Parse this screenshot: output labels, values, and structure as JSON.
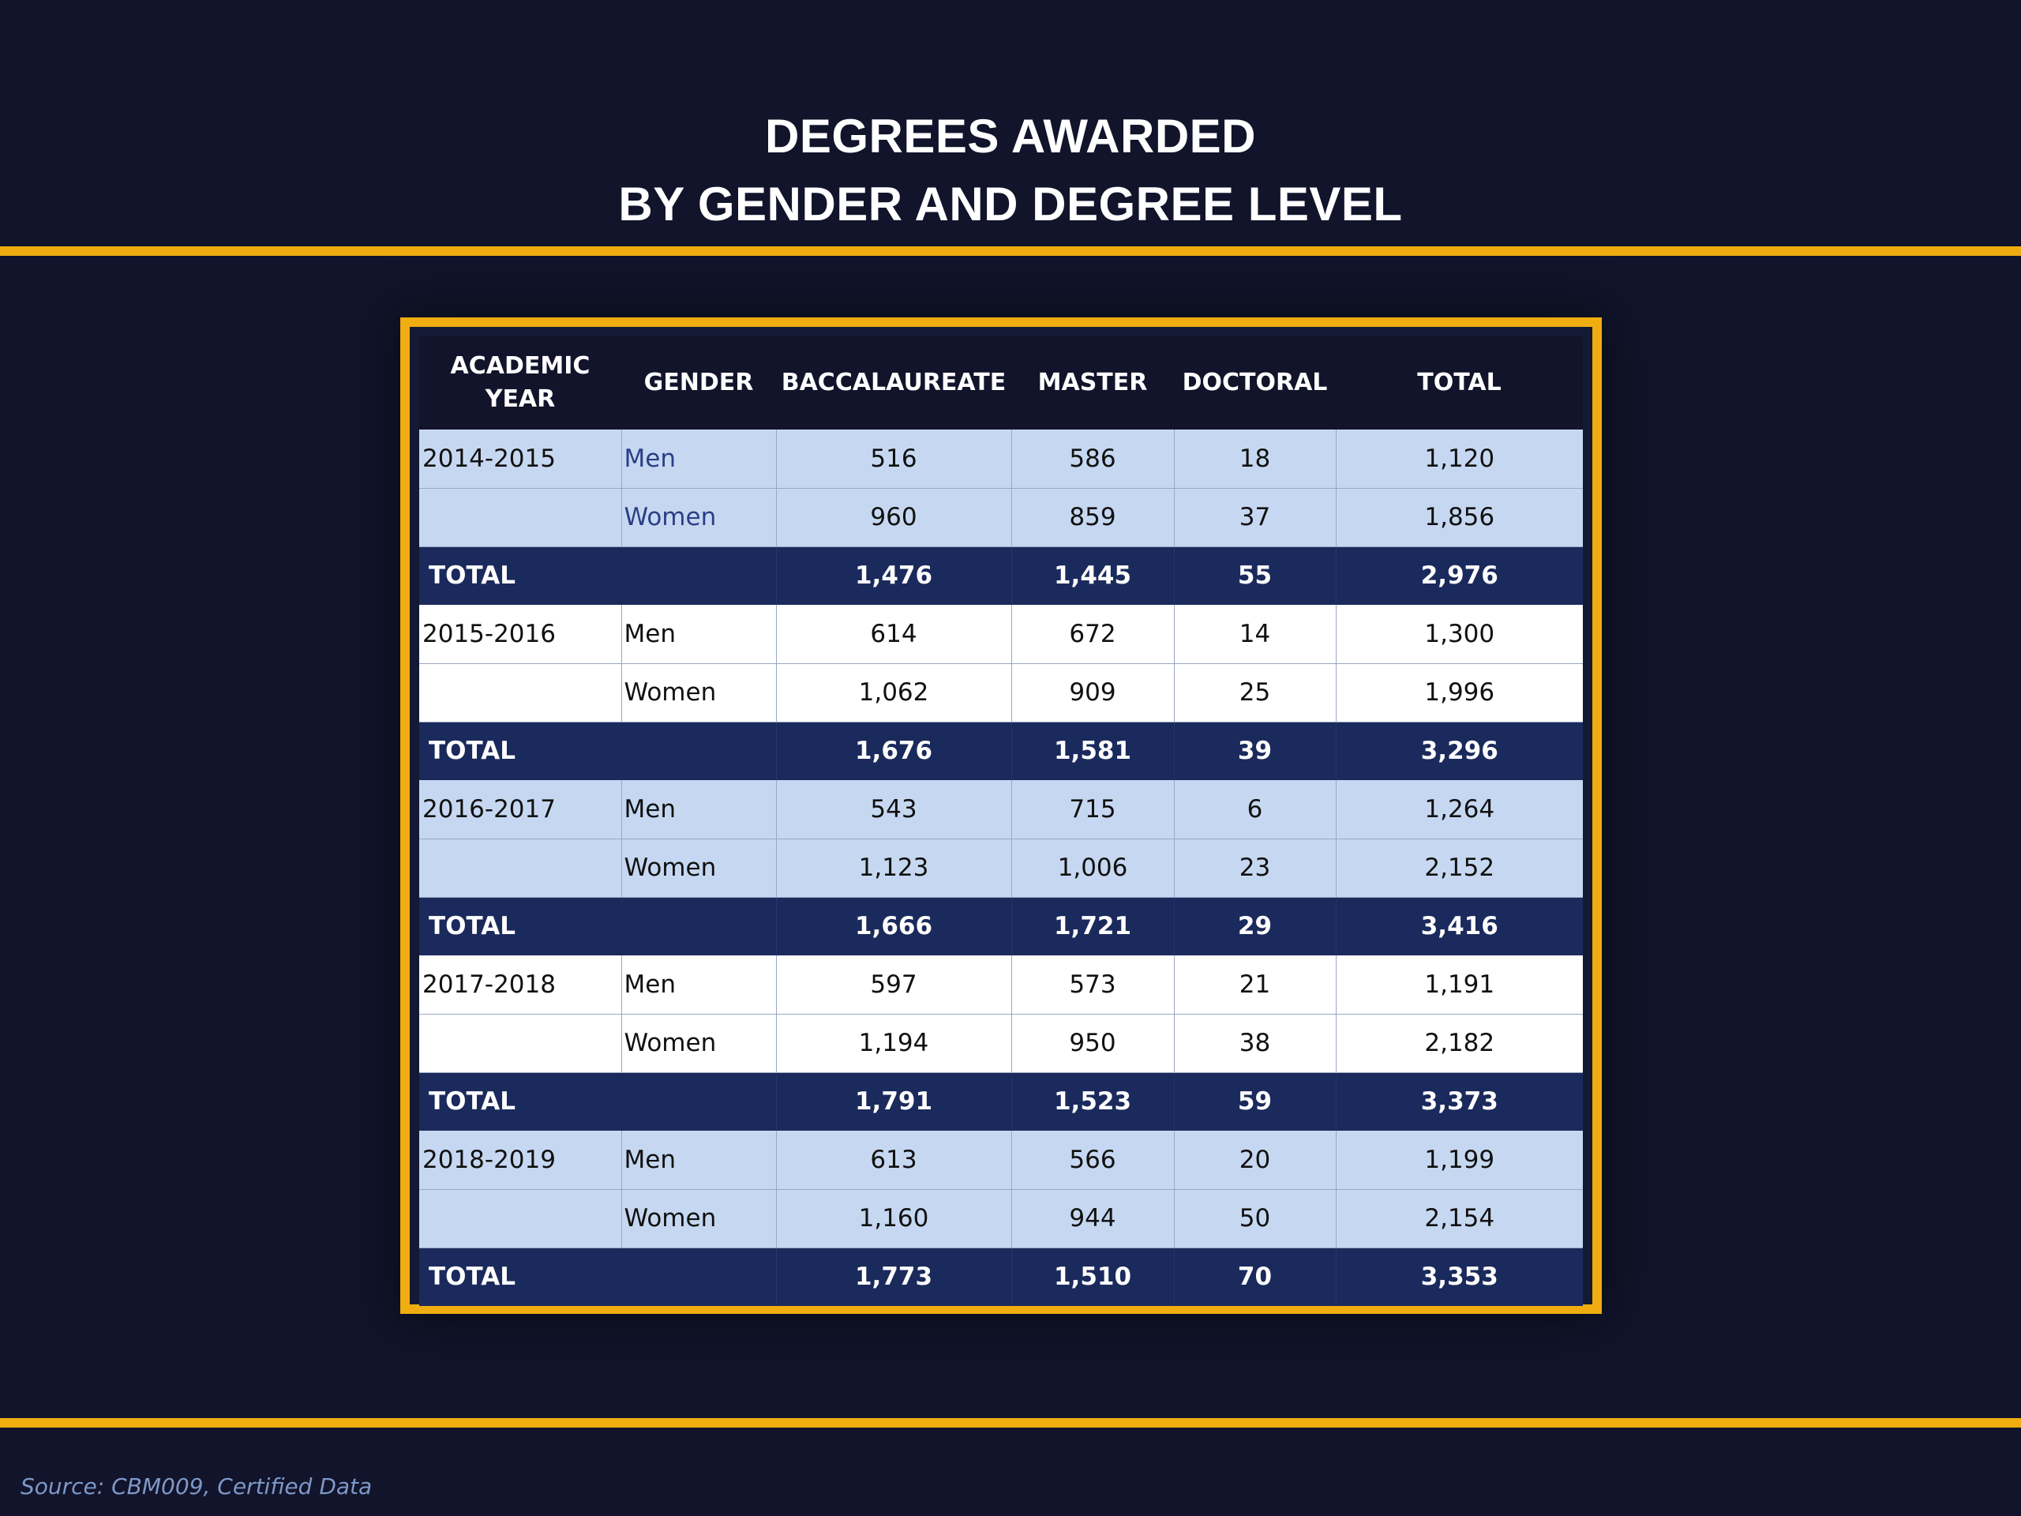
{
  "title": {
    "line1": "DEGREES AWARDED",
    "line2": "BY GENDER AND DEGREE LEVEL"
  },
  "table": {
    "headers": {
      "academic_year_line1": "ACADEMIC",
      "academic_year_line2": "YEAR",
      "gender": "GENDER",
      "baccalaureate": "BACCALAUREATE",
      "master": "MASTER",
      "doctoral": "DOCTORAL",
      "total": "TOTAL"
    },
    "groups": [
      {
        "year": "2014-2015",
        "men": {
          "gender": "Men",
          "baccalaureate": "516",
          "master": "586",
          "doctoral": "18",
          "total": "1,120"
        },
        "women": {
          "gender": "Women",
          "baccalaureate": "960",
          "master": "859",
          "doctoral": "37",
          "total": "1,856"
        },
        "sum": {
          "label": "TOTAL",
          "baccalaureate": "1,476",
          "master": "1,445",
          "doctoral": "55",
          "total": "2,976"
        }
      },
      {
        "year": "2015-2016",
        "men": {
          "gender": "Men",
          "baccalaureate": "614",
          "master": "672",
          "doctoral": "14",
          "total": "1,300"
        },
        "women": {
          "gender": "Women",
          "baccalaureate": "1,062",
          "master": "909",
          "doctoral": "25",
          "total": "1,996"
        },
        "sum": {
          "label": "TOTAL",
          "baccalaureate": "1,676",
          "master": "1,581",
          "doctoral": "39",
          "total": "3,296"
        }
      },
      {
        "year": "2016-2017",
        "men": {
          "gender": "Men",
          "baccalaureate": "543",
          "master": "715",
          "doctoral": "6",
          "total": "1,264"
        },
        "women": {
          "gender": "Women",
          "baccalaureate": "1,123",
          "master": "1,006",
          "doctoral": "23",
          "total": "2,152"
        },
        "sum": {
          "label": "TOTAL",
          "baccalaureate": "1,666",
          "master": "1,721",
          "doctoral": "29",
          "total": "3,416"
        }
      },
      {
        "year": "2017-2018",
        "men": {
          "gender": "Men",
          "baccalaureate": "597",
          "master": "573",
          "doctoral": "21",
          "total": "1,191"
        },
        "women": {
          "gender": "Women",
          "baccalaureate": "1,194",
          "master": "950",
          "doctoral": "38",
          "total": "2,182"
        },
        "sum": {
          "label": "TOTAL",
          "baccalaureate": "1,791",
          "master": "1,523",
          "doctoral": "59",
          "total": "3,373"
        }
      },
      {
        "year": "2018-2019",
        "men": {
          "gender": "Men",
          "baccalaureate": "613",
          "master": "566",
          "doctoral": "20",
          "total": "1,199"
        },
        "women": {
          "gender": "Women",
          "baccalaureate": "1,160",
          "master": "944",
          "doctoral": "50",
          "total": "2,154"
        },
        "sum": {
          "label": "TOTAL",
          "baccalaureate": "1,773",
          "master": "1,510",
          "doctoral": "70",
          "total": "3,353"
        }
      }
    ]
  },
  "source": "Source: CBM009, Certified Data",
  "colors": {
    "background": "#11142a",
    "accent": "#f0ad10",
    "row_light": "#c6d8f1",
    "total_row": "#1b2a5c"
  }
}
